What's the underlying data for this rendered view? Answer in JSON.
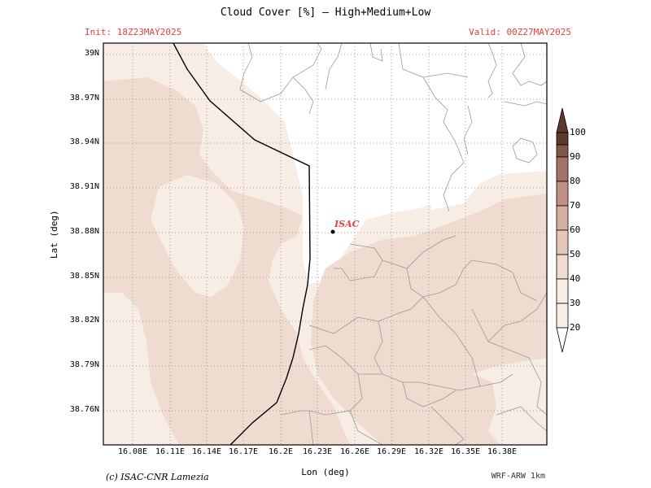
{
  "title": "Cloud Cover [%] — High+Medium+Low",
  "init_label": "Init: 18Z23MAY2025",
  "valid_label": "Valid: 00Z27MAY2025",
  "ylabel": "Lat (deg)",
  "xlabel": "Lon (deg)",
  "credit": "(c) ISAC-CNR Lamezia",
  "model": "WRF-ARW 1km",
  "marker": {
    "name": "ISAC",
    "lon": 16.234,
    "lat": 38.88
  },
  "yticks": [
    "39N",
    "38.97N",
    "38.94N",
    "38.91N",
    "38.88N",
    "38.85N",
    "38.82N",
    "38.79N",
    "38.76N"
  ],
  "xticks": [
    "16.08E",
    "16.11E",
    "16.14E",
    "16.17E",
    "16.2E",
    "16.23E",
    "16.26E",
    "16.29E",
    "16.32E",
    "16.35E",
    "16.38E"
  ],
  "colorbar": {
    "levels": [
      20,
      30,
      40,
      50,
      60,
      70,
      80,
      90,
      100
    ],
    "colors": [
      "#ffffff",
      "#f8ede4",
      "#efdbd0",
      "#e5c8ba",
      "#d6b0a0",
      "#c09183",
      "#a37466",
      "#845647",
      "#5e3a2c",
      "#3c2418"
    ]
  }
}
